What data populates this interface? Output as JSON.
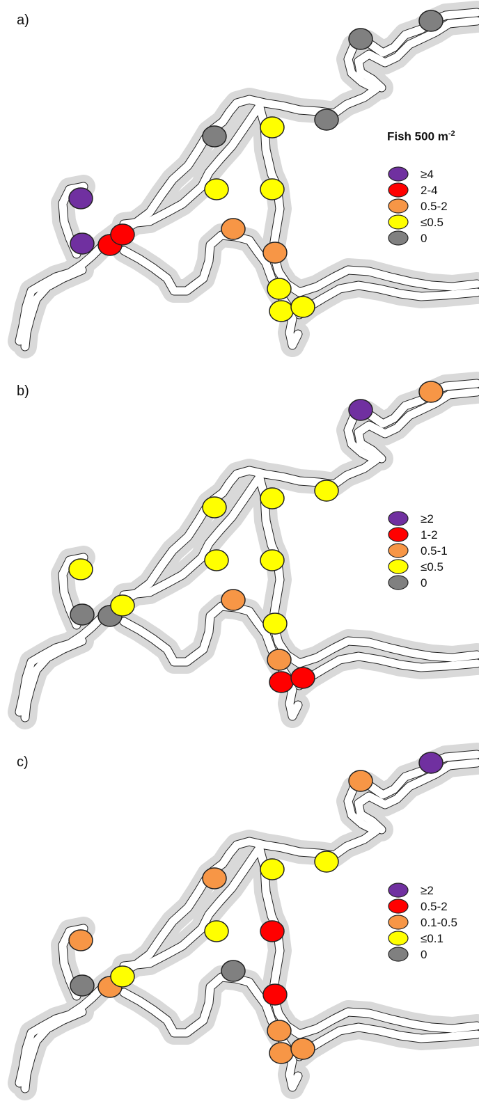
{
  "panels": [
    {
      "label": "a)",
      "legend_title": "Fish 500 m",
      "legend_title_sup": "-2",
      "legend": [
        {
          "label": "≥4",
          "color": "#7030a0"
        },
        {
          "label": "2-4",
          "color": "#ff0000"
        },
        {
          "label": "0.5-2",
          "color": "#f79646"
        },
        {
          "label": "≤0.5",
          "color": "#ffff00"
        },
        {
          "label": "0",
          "color": "#808080"
        }
      ],
      "sites": [
        "#808080",
        "#808080",
        "#808080",
        "#808080",
        "#ffff00",
        "#ffff00",
        "#ffff00",
        "#7030a0",
        "#7030a0",
        "#ff0000",
        "#ff0000",
        "#f79646",
        "#f79646",
        "#ffff00",
        "#ffff00",
        "#ffff00"
      ]
    },
    {
      "label": "b)",
      "legend_title": "",
      "legend_title_sup": "",
      "legend": [
        {
          "label": "≥2",
          "color": "#7030a0"
        },
        {
          "label": "1-2",
          "color": "#ff0000"
        },
        {
          "label": "0.5-1",
          "color": "#f79646"
        },
        {
          "label": "≤0.5",
          "color": "#ffff00"
        },
        {
          "label": "0",
          "color": "#808080"
        }
      ],
      "sites": [
        "#f79646",
        "#7030a0",
        "#ffff00",
        "#ffff00",
        "#ffff00",
        "#ffff00",
        "#ffff00",
        "#ffff00",
        "#808080",
        "#808080",
        "#ffff00",
        "#f79646",
        "#ffff00",
        "#f79646",
        "#ff0000",
        "#ff0000"
      ]
    },
    {
      "label": "c)",
      "legend_title": "",
      "legend_title_sup": "",
      "legend": [
        {
          "label": "≥2",
          "color": "#7030a0"
        },
        {
          "label": "0.5-2",
          "color": "#ff0000"
        },
        {
          "label": "0.1-0.5",
          "color": "#f79646"
        },
        {
          "label": "≤0.1",
          "color": "#ffff00"
        },
        {
          "label": "0",
          "color": "#808080"
        }
      ],
      "sites": [
        "#7030a0",
        "#f79646",
        "#ffff00",
        "#f79646",
        "#ffff00",
        "#ffff00",
        "#ff0000",
        "#f79646",
        "#808080",
        "#f79646",
        "#ffff00",
        "#808080",
        "#ff0000",
        "#f79646",
        "#f79646",
        "#f79646"
      ]
    }
  ]
}
